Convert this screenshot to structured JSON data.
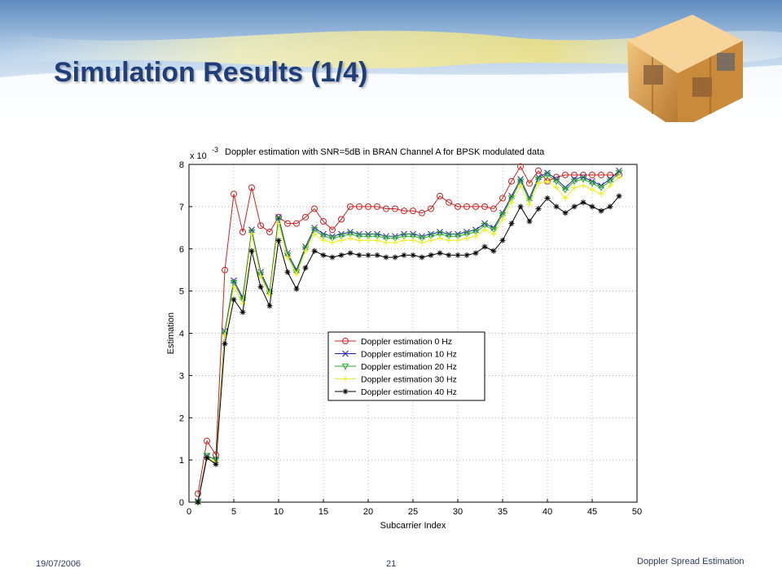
{
  "slide": {
    "title": "Simulation Results (1/4)",
    "date": "19/07/2006",
    "page": "21",
    "topic": "Doppler Spread Estimation",
    "accent": "#1f3f7a"
  },
  "chart_data": {
    "type": "line",
    "title": "Doppler estimation with SNR=5dB in BRAN Channel A for BPSK modulated data",
    "xlabel": "Subcarrier Index",
    "ylabel": "Estimation",
    "y_scale_label": "x 10",
    "y_scale_exponent": "-3",
    "xlim": [
      0,
      50
    ],
    "ylim": [
      0,
      8
    ],
    "xticks": [
      0,
      5,
      10,
      15,
      20,
      25,
      30,
      35,
      40,
      45,
      50
    ],
    "yticks": [
      0,
      1,
      2,
      3,
      4,
      5,
      6,
      7,
      8
    ],
    "grid": true,
    "legend_position": "center-right",
    "x": [
      1,
      2,
      3,
      4,
      5,
      6,
      7,
      8,
      9,
      10,
      11,
      12,
      13,
      14,
      15,
      16,
      17,
      18,
      19,
      20,
      21,
      22,
      23,
      24,
      25,
      26,
      27,
      28,
      29,
      30,
      31,
      32,
      33,
      34,
      35,
      36,
      37,
      38,
      39,
      40,
      41,
      42,
      43,
      44,
      45,
      46,
      47,
      48
    ],
    "series": [
      {
        "name": "Doppler estimation 0 Hz",
        "color": "#cc2222",
        "marker": "circle",
        "values": [
          0.2,
          1.45,
          1.12,
          5.5,
          7.3,
          6.4,
          7.45,
          6.55,
          6.4,
          6.75,
          6.6,
          6.6,
          6.75,
          6.95,
          6.65,
          6.45,
          6.7,
          7.0,
          7.0,
          7.0,
          7.0,
          6.95,
          6.95,
          6.9,
          6.9,
          6.85,
          6.95,
          7.25,
          7.1,
          7.0,
          7.0,
          7.0,
          7.0,
          6.95,
          7.2,
          7.6,
          7.95,
          7.55,
          7.85,
          7.6,
          7.7,
          7.75,
          7.75,
          7.75,
          7.75,
          7.75,
          7.75,
          7.75
        ]
      },
      {
        "name": "Doppler estimation 10 Hz",
        "color": "#2222aa",
        "marker": "x",
        "values": [
          0.02,
          1.1,
          1.0,
          4.05,
          5.25,
          4.85,
          6.45,
          5.45,
          5.0,
          6.75,
          5.9,
          5.5,
          6.05,
          6.5,
          6.35,
          6.3,
          6.35,
          6.4,
          6.35,
          6.35,
          6.35,
          6.3,
          6.3,
          6.35,
          6.35,
          6.3,
          6.35,
          6.4,
          6.35,
          6.35,
          6.4,
          6.45,
          6.6,
          6.5,
          6.85,
          7.25,
          7.65,
          7.2,
          7.7,
          7.8,
          7.65,
          7.45,
          7.65,
          7.7,
          7.6,
          7.5,
          7.65,
          7.85
        ]
      },
      {
        "name": "Doppler estimation 20 Hz",
        "color": "#22aa22",
        "marker": "triangle-down",
        "values": [
          0.0,
          1.1,
          1.0,
          4.0,
          5.2,
          4.8,
          6.4,
          5.4,
          4.95,
          6.7,
          5.85,
          5.45,
          6.0,
          6.45,
          6.3,
          6.25,
          6.3,
          6.35,
          6.3,
          6.3,
          6.3,
          6.25,
          6.25,
          6.3,
          6.3,
          6.25,
          6.3,
          6.35,
          6.3,
          6.3,
          6.35,
          6.4,
          6.55,
          6.45,
          6.8,
          7.2,
          7.6,
          7.15,
          7.65,
          7.75,
          7.6,
          7.4,
          7.6,
          7.65,
          7.55,
          7.45,
          7.6,
          7.8
        ]
      },
      {
        "name": "Doppler estimation 30 Hz",
        "color": "#eeee22",
        "marker": "plus",
        "values": [
          0.0,
          1.05,
          0.95,
          3.95,
          5.1,
          4.7,
          6.35,
          5.35,
          4.9,
          6.6,
          5.8,
          5.4,
          5.95,
          6.35,
          6.2,
          6.15,
          6.2,
          6.25,
          6.2,
          6.2,
          6.2,
          6.15,
          6.15,
          6.2,
          6.2,
          6.15,
          6.2,
          6.25,
          6.2,
          6.2,
          6.25,
          6.3,
          6.45,
          6.35,
          6.7,
          7.1,
          7.5,
          7.05,
          7.55,
          7.6,
          7.45,
          7.2,
          7.45,
          7.5,
          7.4,
          7.3,
          7.5,
          7.7
        ]
      },
      {
        "name": "Doppler estimation 40 Hz",
        "color": "#000000",
        "marker": "star",
        "values": [
          0.0,
          1.05,
          0.9,
          3.75,
          4.8,
          4.5,
          5.95,
          5.1,
          4.65,
          6.2,
          5.45,
          5.05,
          5.55,
          5.95,
          5.85,
          5.8,
          5.85,
          5.9,
          5.85,
          5.85,
          5.85,
          5.8,
          5.8,
          5.85,
          5.85,
          5.8,
          5.85,
          5.9,
          5.85,
          5.85,
          5.85,
          5.9,
          6.05,
          5.95,
          6.2,
          6.6,
          7.0,
          6.65,
          6.95,
          7.2,
          7.0,
          6.85,
          7.0,
          7.1,
          7.0,
          6.9,
          7.0,
          7.25
        ]
      }
    ]
  }
}
